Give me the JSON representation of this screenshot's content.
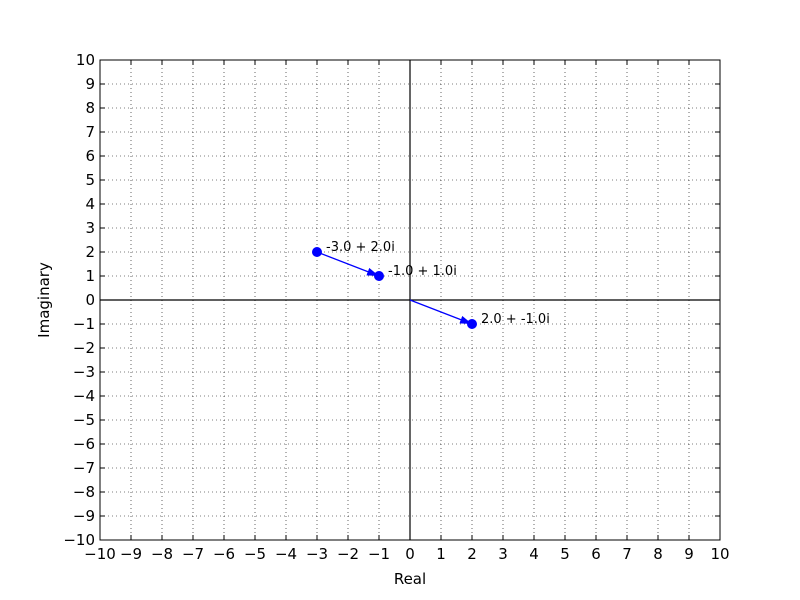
{
  "chart_data": {
    "type": "scatter",
    "title": "",
    "xlabel": "Real",
    "ylabel": "Imaginary",
    "xlim": [
      -10,
      10
    ],
    "ylim": [
      -10,
      10
    ],
    "x_ticks": [
      -10,
      -9,
      -8,
      -7,
      -6,
      -5,
      -4,
      -3,
      -2,
      -1,
      0,
      1,
      2,
      3,
      4,
      5,
      6,
      7,
      8,
      9,
      10
    ],
    "y_ticks": [
      -10,
      -9,
      -8,
      -7,
      -6,
      -5,
      -4,
      -3,
      -2,
      -1,
      0,
      1,
      2,
      3,
      4,
      5,
      6,
      7,
      8,
      9,
      10
    ],
    "grid": true,
    "grid_style": "dotted",
    "points": [
      {
        "x": -3,
        "y": 2,
        "label": "-3.0 + 2.0i"
      },
      {
        "x": -1,
        "y": 1,
        "label": "-1.0 + 1.0i"
      },
      {
        "x": 2,
        "y": -1,
        "label": "2.0 + -1.0i"
      }
    ],
    "arrows": [
      {
        "from": [
          -3,
          2
        ],
        "to": [
          -1,
          1
        ]
      },
      {
        "from": [
          0,
          0
        ],
        "to": [
          2,
          -1
        ]
      }
    ],
    "series_color": "#0000ff",
    "axis_line_color": "#000000"
  }
}
